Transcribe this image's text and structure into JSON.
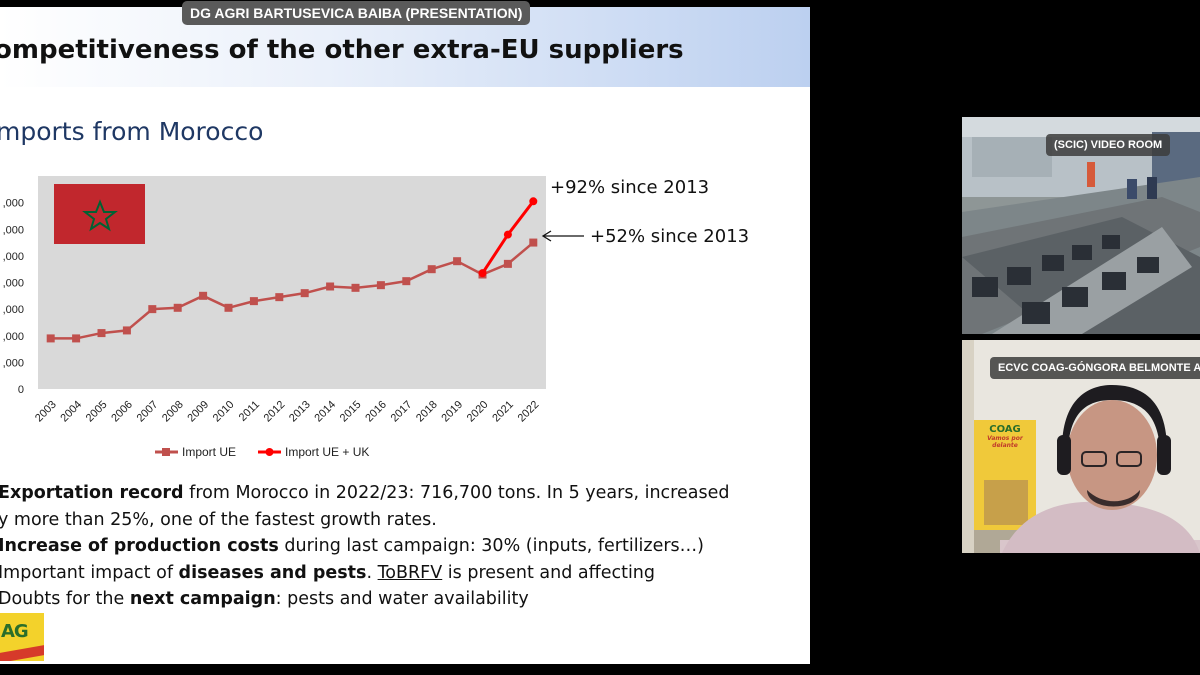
{
  "presenter_label": "DG AGRI BARTUSEVICA BAIBA (PRESENTATION)",
  "slide": {
    "title": "ompetitiveness of the other extra-EU suppliers",
    "subtitle": "mports from Morocco",
    "annotation_uk": "+92% since 2013",
    "annotation_ue": "+52% since 2013",
    "bullets": [
      {
        "bold": "Exportation record",
        "rest": " from Morocco in 2022/23: 716,700 tons. In 5 years, increased"
      },
      {
        "plain": "y more than 25%, one of the fastest growth rates."
      },
      {
        "bold": "Increase of production costs",
        "rest": " during last campaign: 30% (inputs, fertilizers…)"
      },
      {
        "pre": "Important impact of ",
        "bold": "diseases and pests",
        "mid": ". ",
        "link": "ToBRFV",
        "rest": " is present and affecting"
      },
      {
        "pre": "Doubts for the ",
        "bold": "next campaign",
        "rest": ": pests and water availability"
      }
    ],
    "logo_text": "AG"
  },
  "chart_data": {
    "type": "line",
    "categories": [
      "2003",
      "2004",
      "2005",
      "2006",
      "2007",
      "2008",
      "2009",
      "2010",
      "2011",
      "2012",
      "2013",
      "2014",
      "2015",
      "2016",
      "2017",
      "2018",
      "2019",
      "2020",
      "2021",
      "2022"
    ],
    "ytick_labels": [
      ",000",
      ",000",
      ",000",
      ",000",
      ",000",
      ",000",
      ",000",
      "0"
    ],
    "ylim": [
      0,
      8
    ],
    "series": [
      {
        "name": "Import UE",
        "color": "#c0504d",
        "values": [
          1.9,
          1.9,
          2.1,
          2.2,
          3.0,
          3.05,
          3.5,
          3.05,
          3.3,
          3.45,
          3.6,
          3.85,
          3.8,
          3.9,
          4.05,
          4.5,
          4.8,
          4.3,
          4.7,
          5.5
        ]
      },
      {
        "name": "Import UE + UK",
        "color": "#ff0000",
        "values": [
          null,
          null,
          null,
          null,
          null,
          null,
          null,
          null,
          null,
          null,
          null,
          null,
          null,
          null,
          null,
          null,
          null,
          4.35,
          5.8,
          7.05
        ]
      }
    ],
    "grid": false,
    "legend": "bottom"
  },
  "tiles": [
    {
      "label": "(SCIC) VIDEO ROOM"
    },
    {
      "label": "ECVC COAG-GÓNGORA BELMONTE AN",
      "sign_text": "COAG",
      "sign_sub": "Vamos por delante"
    }
  ]
}
